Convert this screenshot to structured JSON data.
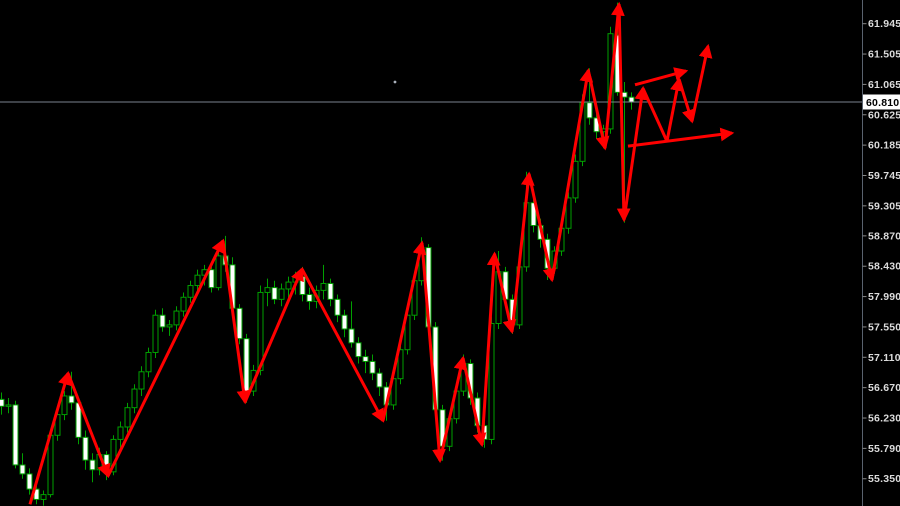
{
  "chart_data": {
    "type": "candlestick",
    "title": "",
    "grid": false,
    "legend": false,
    "ylim": [
      54.95,
      62.28
    ],
    "y_axis": {
      "current_price": "60.810",
      "current_price_value": 60.81,
      "ticks": [
        "61.945",
        "61.505",
        "61.065",
        "60.625",
        "60.185",
        "59.745",
        "59.305",
        "58.870",
        "58.430",
        "57.990",
        "57.550",
        "57.110",
        "56.670",
        "56.230",
        "55.790",
        "55.350"
      ]
    },
    "candles": [
      [
        56.5,
        56.6,
        56.28,
        56.4
      ],
      [
        56.4,
        56.52,
        56.3,
        56.42
      ],
      [
        56.42,
        56.48,
        55.5,
        55.55
      ],
      [
        55.55,
        55.72,
        55.35,
        55.42
      ],
      [
        55.42,
        55.5,
        55.12,
        55.2
      ],
      [
        55.2,
        55.3,
        54.98,
        55.05
      ],
      [
        55.05,
        55.18,
        54.96,
        55.12
      ],
      [
        55.12,
        56.05,
        55.08,
        55.98
      ],
      [
        55.98,
        56.35,
        55.9,
        56.28
      ],
      [
        56.28,
        56.62,
        56.2,
        56.55
      ],
      [
        56.55,
        56.9,
        56.35,
        56.45
      ],
      [
        56.45,
        56.52,
        55.85,
        55.95
      ],
      [
        55.95,
        56.05,
        55.48,
        55.62
      ],
      [
        55.62,
        55.72,
        55.3,
        55.48
      ],
      [
        55.48,
        55.8,
        55.4,
        55.7
      ],
      [
        55.7,
        55.75,
        55.33,
        55.45
      ],
      [
        55.45,
        55.98,
        55.4,
        55.92
      ],
      [
        55.92,
        56.18,
        55.8,
        56.1
      ],
      [
        56.1,
        56.45,
        56.02,
        56.38
      ],
      [
        56.38,
        56.72,
        56.3,
        56.65
      ],
      [
        56.65,
        56.98,
        56.55,
        56.9
      ],
      [
        56.9,
        57.25,
        56.82,
        57.18
      ],
      [
        57.18,
        57.8,
        57.1,
        57.72
      ],
      [
        57.72,
        57.82,
        57.48,
        57.55
      ],
      [
        57.55,
        57.65,
        57.42,
        57.58
      ],
      [
        57.58,
        57.85,
        57.5,
        57.78
      ],
      [
        57.78,
        58.05,
        57.7,
        57.98
      ],
      [
        57.98,
        58.22,
        57.9,
        58.15
      ],
      [
        58.15,
        58.38,
        58.05,
        58.3
      ],
      [
        58.3,
        58.45,
        58.15,
        58.38
      ],
      [
        58.38,
        58.42,
        58.05,
        58.12
      ],
      [
        58.12,
        58.65,
        58.08,
        58.58
      ],
      [
        58.58,
        58.87,
        58.35,
        58.45
      ],
      [
        58.45,
        58.56,
        57.75,
        57.82
      ],
      [
        57.82,
        57.88,
        57.3,
        57.38
      ],
      [
        57.38,
        57.45,
        56.45,
        56.62
      ],
      [
        56.62,
        57.0,
        56.55,
        56.92
      ],
      [
        56.92,
        58.15,
        56.85,
        58.05
      ],
      [
        58.05,
        58.25,
        57.85,
        58.12
      ],
      [
        58.12,
        58.22,
        57.88,
        57.95
      ],
      [
        57.95,
        58.18,
        57.85,
        58.1
      ],
      [
        58.1,
        58.28,
        57.95,
        58.2
      ],
      [
        58.2,
        58.35,
        58.02,
        58.28
      ],
      [
        58.28,
        58.42,
        57.92,
        58.02
      ],
      [
        58.02,
        58.12,
        57.8,
        57.92
      ],
      [
        57.92,
        58.15,
        57.82,
        58.08
      ],
      [
        58.08,
        58.45,
        57.95,
        58.18
      ],
      [
        58.18,
        58.25,
        57.85,
        57.95
      ],
      [
        57.95,
        58.02,
        57.62,
        57.72
      ],
      [
        57.72,
        57.8,
        57.4,
        57.52
      ],
      [
        57.52,
        57.92,
        57.25,
        57.32
      ],
      [
        57.32,
        57.4,
        57.02,
        57.12
      ],
      [
        57.12,
        57.22,
        56.88,
        57.05
      ],
      [
        57.05,
        57.15,
        56.78,
        56.88
      ],
      [
        56.88,
        56.95,
        56.55,
        56.68
      ],
      [
        56.68,
        56.75,
        56.19,
        56.42
      ],
      [
        56.42,
        56.88,
        56.35,
        56.8
      ],
      [
        56.8,
        57.3,
        56.72,
        57.22
      ],
      [
        57.22,
        57.8,
        57.15,
        57.72
      ],
      [
        57.72,
        58.3,
        57.65,
        58.22
      ],
      [
        58.22,
        58.85,
        58.15,
        58.7
      ],
      [
        58.7,
        58.75,
        57.45,
        57.55
      ],
      [
        57.55,
        57.62,
        56.25,
        56.35
      ],
      [
        56.35,
        56.42,
        55.61,
        55.82
      ],
      [
        55.82,
        56.3,
        55.75,
        56.22
      ],
      [
        56.22,
        56.7,
        56.15,
        56.62
      ],
      [
        56.62,
        57.15,
        56.55,
        57.02
      ],
      [
        57.02,
        57.08,
        56.42,
        56.52
      ],
      [
        56.52,
        56.6,
        56.02,
        56.12
      ],
      [
        56.12,
        56.18,
        55.8,
        55.92
      ],
      [
        55.92,
        57.7,
        55.85,
        57.6
      ],
      [
        57.6,
        58.65,
        57.52,
        58.35
      ],
      [
        58.35,
        58.42,
        57.85,
        57.95
      ],
      [
        57.95,
        58.02,
        57.45,
        57.58
      ],
      [
        57.58,
        58.5,
        57.52,
        58.42
      ],
      [
        58.42,
        59.8,
        58.35,
        59.35
      ],
      [
        59.35,
        59.55,
        58.92,
        59.02
      ],
      [
        59.02,
        59.12,
        58.7,
        58.82
      ],
      [
        58.82,
        58.9,
        58.23,
        58.4
      ],
      [
        58.4,
        58.72,
        58.32,
        58.65
      ],
      [
        58.65,
        59.05,
        58.58,
        58.98
      ],
      [
        58.98,
        59.5,
        58.9,
        59.42
      ],
      [
        59.42,
        60.05,
        59.35,
        59.95
      ],
      [
        59.95,
        60.92,
        59.88,
        60.8
      ],
      [
        60.8,
        61.3,
        60.48,
        60.58
      ],
      [
        60.58,
        60.68,
        60.28,
        60.38
      ],
      [
        60.38,
        60.48,
        60.14,
        60.42
      ],
      [
        60.42,
        61.9,
        60.35,
        61.8
      ],
      [
        61.78,
        62.25,
        60.9,
        60.95
      ],
      [
        60.95,
        61.1,
        59.06,
        60.88
      ],
      [
        60.88,
        60.95,
        60.7,
        60.81
      ]
    ],
    "zigzag_points": [
      [
        4.14,
        54.98,
        null
      ],
      [
        9.57,
        56.88,
        "up"
      ],
      [
        15.29,
        55.39,
        "down"
      ],
      [
        31.71,
        58.8,
        "up"
      ],
      [
        34.86,
        56.46,
        "down"
      ],
      [
        43.0,
        58.39,
        "up"
      ],
      [
        54.57,
        56.19,
        "down"
      ],
      [
        60.14,
        58.77,
        "up"
      ],
      [
        62.71,
        55.61,
        "down"
      ],
      [
        66.0,
        57.1,
        "up"
      ],
      [
        68.71,
        55.84,
        "down"
      ],
      [
        70.5,
        58.61,
        "up"
      ],
      [
        73.0,
        57.48,
        "down"
      ],
      [
        75.43,
        59.77,
        "up"
      ],
      [
        78.71,
        58.23,
        "down"
      ],
      [
        83.9,
        61.27,
        "up"
      ],
      [
        86.29,
        60.14,
        "down"
      ],
      [
        88.29,
        62.23,
        "up"
      ],
      [
        89.0,
        59.1,
        "down"
      ],
      [
        91.71,
        61.01,
        "up"
      ],
      [
        95.14,
        60.24,
        null
      ],
      [
        96.86,
        61.14,
        "up"
      ],
      [
        98.71,
        60.53,
        "down"
      ],
      [
        101.0,
        61.62,
        "up"
      ]
    ],
    "forecast_arrows": [
      {
        "from": [
          90.57,
          61.06
        ],
        "to": [
          97.86,
          61.26
        ]
      },
      {
        "from": [
          89.57,
          60.17
        ],
        "to": [
          104.43,
          60.36
        ]
      }
    ],
    "dot": {
      "x": 395,
      "y": 82
    }
  },
  "colors": {
    "background": "#000000",
    "bull_body": "#000000",
    "bear_body": "#ffffff",
    "candle_border": "#00a000",
    "wick": "#00a000",
    "trend": "#ff0000",
    "price_line": "#7a828e",
    "axis_line": "#59626e",
    "tick_mark": "#8a8a8a",
    "tick_text": "#dcdcdc",
    "badge_bg": "#ffffff",
    "badge_text": "#000000",
    "dot": "#aab2bc"
  }
}
